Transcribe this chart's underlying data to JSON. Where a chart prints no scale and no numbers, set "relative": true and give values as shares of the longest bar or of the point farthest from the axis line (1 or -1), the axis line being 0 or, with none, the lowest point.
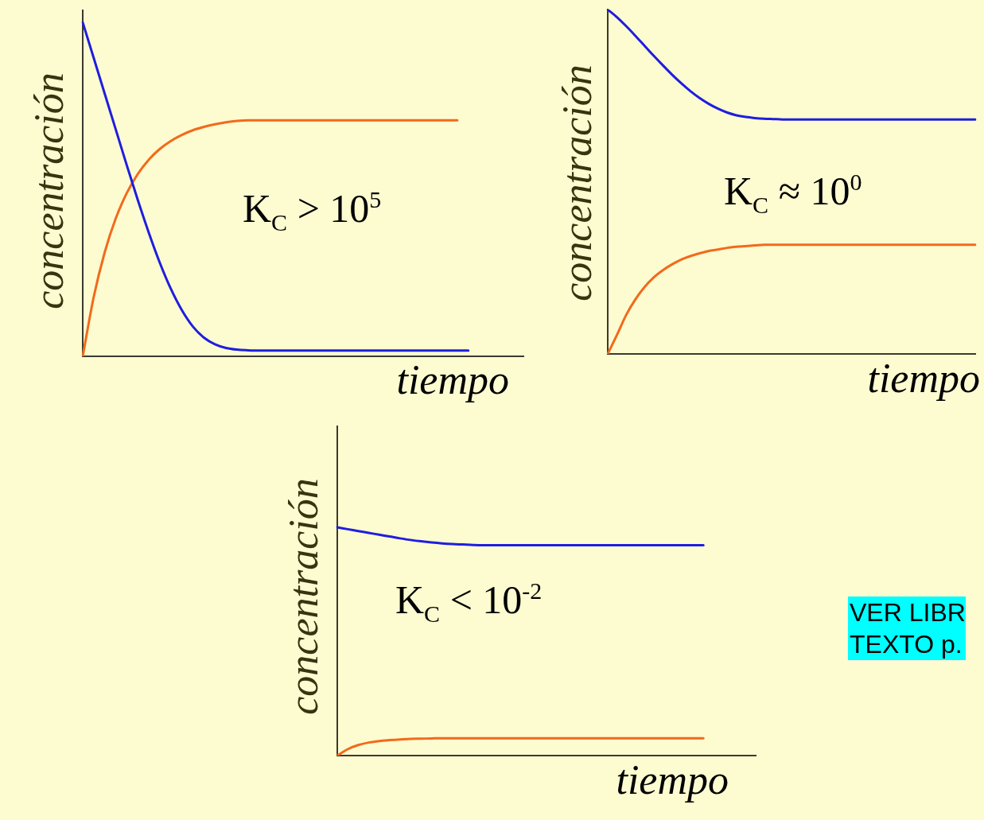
{
  "chart_data": [
    {
      "type": "line",
      "relative": true,
      "tick_labels": false,
      "ylabel": "concentración",
      "xlabel": "tiempo",
      "annotations": [
        "K$_{C}$ > 10$^{5}$"
      ],
      "categories": [
        null,
        null,
        null,
        null,
        null,
        null,
        null,
        null,
        null,
        null,
        null,
        null,
        null,
        null,
        null,
        null,
        null,
        null,
        null,
        null,
        null,
        null,
        null,
        null,
        null,
        null,
        null,
        null,
        null,
        null,
        null,
        null,
        null,
        null,
        null,
        null,
        null,
        null,
        null,
        null,
        null
      ],
      "series": [
        {
          "color": "#1e1ee0",
          "values": [
            1,
            0.893,
            0.786,
            0.679,
            0.572,
            0.468,
            0.37,
            0.28,
            0.202,
            0.138,
            0.089,
            0.056,
            0.036,
            0.025,
            0.02,
            0.018,
            0.017,
            0.017,
            0.017,
            0.017,
            0.017,
            0.017,
            0.017,
            0.017,
            0.017,
            0.017,
            0.017,
            0.017,
            0.017,
            0.017,
            0.017,
            0.017,
            0.017,
            0.017,
            0.017,
            0.017,
            null,
            null,
            null,
            null,
            null
          ]
        },
        {
          "color": "#f26a1b",
          "values": [
            0,
            0.178,
            0.312,
            0.413,
            0.489,
            0.546,
            0.589,
            0.621,
            0.645,
            0.663,
            0.677,
            0.687,
            0.695,
            0.701,
            0.705,
            0.707,
            0.707,
            0.707,
            0.707,
            0.707,
            0.707,
            0.707,
            0.707,
            0.707,
            0.707,
            0.707,
            0.707,
            0.707,
            0.707,
            0.707,
            0.707,
            0.707,
            0.707,
            0.707,
            0.707,
            null,
            null,
            null,
            null,
            null,
            null
          ]
        }
      ]
    },
    {
      "type": "line",
      "relative": true,
      "tick_labels": false,
      "ylabel": "concentración",
      "xlabel": "tiempo",
      "annotations": [
        "K$_{C}$ ≈ 10$^{0}$"
      ],
      "categories": [
        null,
        null,
        null,
        null,
        null,
        null,
        null,
        null,
        null,
        null,
        null,
        null,
        null,
        null,
        null,
        null,
        null,
        null,
        null,
        null,
        null,
        null,
        null,
        null,
        null,
        null,
        null,
        null,
        null,
        null,
        null,
        null,
        null,
        null,
        null,
        null,
        null,
        null,
        null,
        null,
        null
      ],
      "series": [
        {
          "color": "#1e1ee0",
          "values": [
            1,
            0.978,
            0.952,
            0.924,
            0.895,
            0.866,
            0.838,
            0.811,
            0.786,
            0.763,
            0.743,
            0.726,
            0.712,
            0.701,
            0.693,
            0.688,
            0.685,
            0.683,
            0.682,
            0.681,
            0.681,
            0.681,
            0.681,
            0.681,
            0.681,
            0.681,
            0.681,
            0.681,
            0.681,
            0.681,
            0.681,
            0.681,
            0.681,
            0.681,
            0.681,
            0.681,
            0.681,
            0.681,
            0.681,
            0.681,
            0.681
          ]
        },
        {
          "color": "#f26a1b",
          "values": [
            0,
            0.055,
            0.113,
            0.158,
            0.194,
            0.222,
            0.243,
            0.26,
            0.274,
            0.284,
            0.292,
            0.299,
            0.303,
            0.308,
            0.311,
            0.313,
            0.315,
            0.317,
            0.317,
            0.317,
            0.317,
            0.317,
            0.317,
            0.317,
            0.317,
            0.317,
            0.317,
            0.317,
            0.317,
            0.317,
            0.317,
            0.317,
            0.317,
            0.317,
            0.317,
            0.317,
            0.317,
            0.317,
            0.317,
            0.317,
            0.317
          ]
        }
      ]
    },
    {
      "type": "line",
      "relative": true,
      "tick_labels": false,
      "ylabel": "concentración",
      "xlabel": "tiempo",
      "annotations": [
        "K$_{C}$ < 10$^{-2}$",
        "VER LIBR\nTEXTO p."
      ],
      "categories": [
        null,
        null,
        null,
        null,
        null,
        null,
        null,
        null,
        null,
        null,
        null,
        null,
        null,
        null,
        null,
        null,
        null,
        null,
        null,
        null,
        null,
        null,
        null,
        null,
        null,
        null,
        null,
        null,
        null,
        null,
        null,
        null,
        null,
        null,
        null,
        null,
        null,
        null,
        null,
        null,
        null
      ],
      "series": [
        {
          "color": "#1e1ee0",
          "values": [
            1,
            0.992,
            0.984,
            0.976,
            0.968,
            0.96,
            0.952,
            0.945,
            0.939,
            0.934,
            0.93,
            0.927,
            0.925,
            0.923,
            0.922,
            0.922,
            0.922,
            0.922,
            0.922,
            0.922,
            0.922,
            0.922,
            0.922,
            0.922,
            0.922,
            0.922,
            0.922,
            0.922,
            0.922,
            0.922,
            0.922,
            0.922,
            0.922,
            0.922,
            0.922,
            0.922,
            null,
            null,
            null,
            null,
            null
          ]
        },
        {
          "color": "#f26a1b",
          "values": [
            0,
            0.028,
            0.046,
            0.057,
            0.064,
            0.068,
            0.071,
            0.073,
            0.074,
            0.075,
            0.076,
            0.076,
            0.076,
            0.076,
            0.076,
            0.076,
            0.076,
            0.076,
            0.076,
            0.076,
            0.076,
            0.076,
            0.076,
            0.076,
            0.076,
            0.076,
            0.076,
            0.076,
            0.076,
            0.076,
            0.076,
            0.076,
            0.076,
            0.076,
            0.076,
            0.076,
            null,
            null,
            null,
            null,
            null
          ]
        }
      ]
    }
  ]
}
